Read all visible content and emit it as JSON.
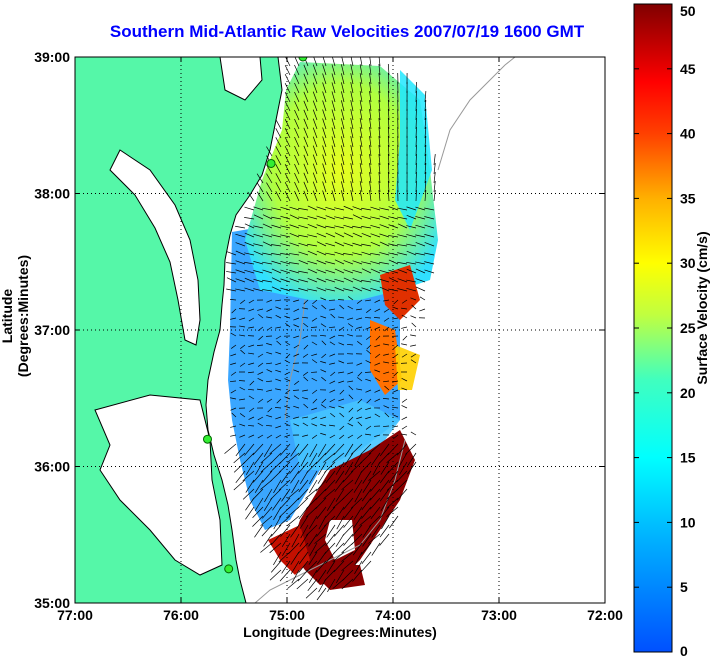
{
  "chart_data": {
    "type": "heatmap",
    "title": "Southern Mid-Atlantic Raw Velocities 2007/07/19 1600 GMT",
    "xlabel": "Longitude (Degrees:Minutes)",
    "ylabel": "Latitude (Degrees:Minutes)",
    "colorbar_label": "Surface Velocity (cm/s)",
    "x_ticks": [
      {
        "value": -77,
        "label": "77:00"
      },
      {
        "value": -76,
        "label": "76:00"
      },
      {
        "value": -75,
        "label": "75:00"
      },
      {
        "value": -74,
        "label": "74:00"
      },
      {
        "value": -73,
        "label": "73:00"
      },
      {
        "value": -72,
        "label": "72:00"
      }
    ],
    "y_ticks": [
      {
        "value": 35,
        "label": "35:00"
      },
      {
        "value": 36,
        "label": "36:00"
      },
      {
        "value": 37,
        "label": "37:00"
      },
      {
        "value": 38,
        "label": "38:00"
      },
      {
        "value": 39,
        "label": "39:00"
      }
    ],
    "xlim": [
      -77,
      -72
    ],
    "ylim": [
      35,
      39
    ],
    "colorbar_ticks": [
      0,
      5,
      10,
      15,
      20,
      25,
      30,
      35,
      40,
      45,
      50
    ],
    "colorbar_range": [
      0,
      50
    ],
    "colormap": "jet",
    "grid": true,
    "land_color": "#55f7a8",
    "velocity_regions": [
      {
        "region": "north",
        "lon": [
          -75.1,
          -74.0
        ],
        "lat": [
          37.4,
          38.9
        ],
        "speed": 24
      },
      {
        "region": "central",
        "lon": [
          -75.4,
          -74.4
        ],
        "lat": [
          36.1,
          37.4
        ],
        "speed": 8
      },
      {
        "region": "east edge",
        "lon": [
          -74.2,
          -73.9
        ],
        "lat": [
          36.5,
          37.4
        ],
        "speed": 42
      },
      {
        "region": "south",
        "lon": [
          -74.8,
          -74.0
        ],
        "lat": [
          35.3,
          36.3
        ],
        "speed": 50
      }
    ],
    "hf_radar_sites": [
      {
        "lon": -74.85,
        "lat": 39.0
      },
      {
        "lon": -75.15,
        "lat": 38.22
      },
      {
        "lon": -75.75,
        "lat": 36.2
      },
      {
        "lon": -75.55,
        "lat": 35.25
      }
    ]
  }
}
